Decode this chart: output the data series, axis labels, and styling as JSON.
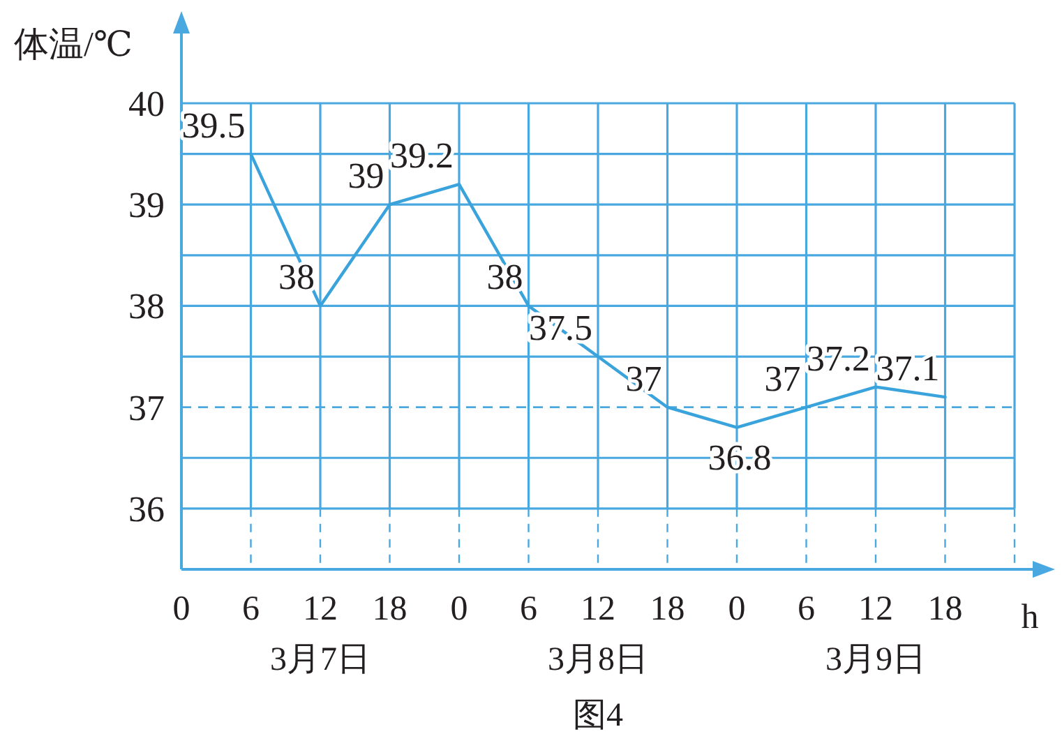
{
  "chart_data": {
    "type": "line",
    "xlabel": "h",
    "ylabel": "体温/℃",
    "categories": [
      "0",
      "6",
      "12",
      "18",
      "0",
      "6",
      "12",
      "18",
      "0",
      "6",
      "12",
      "18",
      null
    ],
    "series": [
      {
        "color": "#3ba3dc",
        "values": [
          null,
          39.5,
          38,
          39,
          39.2,
          38,
          37.5,
          37,
          36.8,
          37,
          37.2,
          37.1,
          null
        ]
      }
    ],
    "data_labels": true,
    "ylim": [
      35.4,
      40
    ],
    "yticks": [
      36,
      {
        "value": 36.5,
        "label": null
      },
      37,
      {
        "value": 37.5,
        "label": null
      },
      38,
      {
        "value": 38.5,
        "label": null
      },
      39,
      {
        "value": 39.5,
        "label": null
      },
      40
    ],
    "grid": true,
    "ref_lines": [
      {
        "axis": "y",
        "value": 37,
        "line_style": "dashed",
        "color": "#4aa8e0"
      }
    ],
    "annotations": [
      "3月7日",
      "3月8日",
      "3月9日",
      "图4"
    ]
  }
}
